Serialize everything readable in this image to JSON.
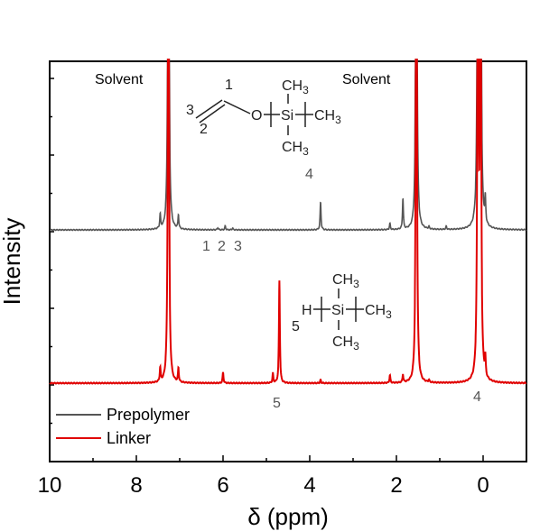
{
  "chart_data": {
    "type": "line",
    "title": "",
    "xlabel": "δ (ppm)",
    "ylabel": "Intensity",
    "xlim": [
      10,
      -1
    ],
    "x_reversed": true,
    "xticks": [
      10,
      8,
      6,
      4,
      2,
      0
    ],
    "y_tick_labels": false,
    "legend": {
      "placement": "bottom-left"
    },
    "series": [
      {
        "name": "Prepolymer",
        "color": "#555555",
        "baseline": 0.0,
        "peaks": [
          {
            "x": 7.45,
            "h": 0.09
          },
          {
            "x": 7.26,
            "h": 5.0
          },
          {
            "x": 7.03,
            "h": 0.09
          },
          {
            "x": 6.12,
            "h": 0.015
          },
          {
            "x": 5.95,
            "h": 0.025
          },
          {
            "x": 5.78,
            "h": 0.012
          },
          {
            "x": 3.75,
            "h": 0.18
          },
          {
            "x": 2.15,
            "h": 0.04
          },
          {
            "x": 1.85,
            "h": 0.2
          },
          {
            "x": 1.54,
            "h": 5.0
          },
          {
            "x": 1.25,
            "h": 0.015
          },
          {
            "x": 0.85,
            "h": 0.02
          },
          {
            "x": 0.12,
            "h": 5.0
          },
          {
            "x": 0.06,
            "h": 5.0
          },
          {
            "x": -0.05,
            "h": 0.16
          }
        ]
      },
      {
        "name": "Linker",
        "color": "#e00000",
        "baseline": -1.0,
        "peaks": [
          {
            "x": 7.45,
            "h": 0.09
          },
          {
            "x": 7.26,
            "h": 5.0
          },
          {
            "x": 7.03,
            "h": 0.09
          },
          {
            "x": 6.0,
            "h": 0.07
          },
          {
            "x": 4.85,
            "h": 0.06
          },
          {
            "x": 4.7,
            "h": 0.67
          },
          {
            "x": 3.75,
            "h": 0.02
          },
          {
            "x": 2.15,
            "h": 0.05
          },
          {
            "x": 1.85,
            "h": 0.05
          },
          {
            "x": 1.54,
            "h": 5.0
          },
          {
            "x": 1.25,
            "h": 0.015
          },
          {
            "x": 0.12,
            "h": 5.0
          },
          {
            "x": 0.06,
            "h": 5.0
          },
          {
            "x": -0.05,
            "h": 0.12
          }
        ]
      }
    ],
    "annotations": {
      "solvent_left": "Solvent",
      "solvent_right": "Solvent",
      "peak_labels": [
        "1",
        "2",
        "3",
        "4",
        "5",
        "4"
      ],
      "structure_a": {
        "n1": "1",
        "n2": "2",
        "n3": "3",
        "n4": "4",
        "o": "O",
        "si": "Si",
        "ch3": "CH",
        "sub": "3"
      },
      "structure_b": {
        "n5": "5",
        "h": "H",
        "si": "Si",
        "ch3": "CH",
        "sub": "3"
      }
    }
  }
}
